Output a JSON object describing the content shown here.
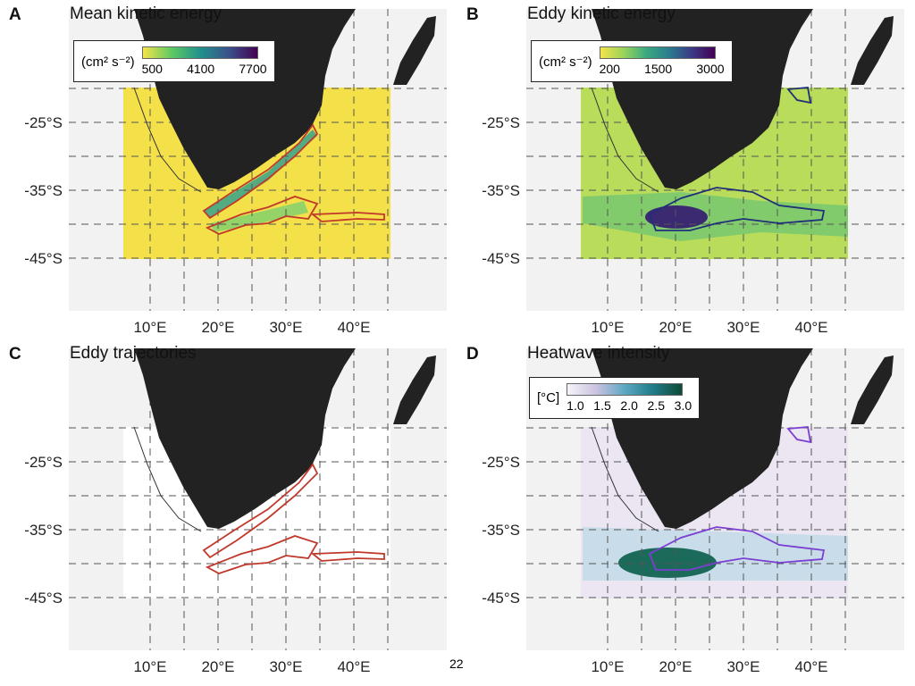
{
  "axes": {
    "lat_ticks": [
      "-25°S",
      "-35°S",
      "-45°S"
    ],
    "lon_ticks": [
      "10°E",
      "20°E",
      "30°E",
      "40°E"
    ]
  },
  "panels": [
    {
      "letter": "A",
      "title": "Mean kinetic energy",
      "legend": {
        "unit": "(cm² s⁻²)",
        "ticks": [
          "500",
          "4100",
          "7700"
        ],
        "colors": [
          "#f5e44a",
          "#5ec962",
          "#21918c",
          "#3b528b",
          "#440154"
        ]
      },
      "fill": "#f4e14a",
      "contour_color": "#c0392b"
    },
    {
      "letter": "B",
      "title": "Eddy kinetic energy",
      "legend": {
        "unit": "(cm² s⁻²)",
        "ticks": [
          "200",
          "1500",
          "3000"
        ],
        "colors": [
          "#f5e44a",
          "#9bd45a",
          "#3aaa80",
          "#2b7c8e",
          "#3b3a86",
          "#440154"
        ]
      },
      "fill": "#b9dd5a",
      "contour_color": "#1f2f78"
    },
    {
      "letter": "C",
      "title": "Eddy trajectories",
      "fill": "#ffffff",
      "contour_color": "#c0392b"
    },
    {
      "letter": "D",
      "title": "Heatwave intensity",
      "legend": {
        "unit": "[°C]",
        "ticks": [
          "1.0",
          "1.5",
          "2.0",
          "2.5",
          "3.0"
        ],
        "colors": [
          "#f7f3fa",
          "#cbc3e0",
          "#5da7c3",
          "#1f7b88",
          "#0d4a36"
        ]
      },
      "fill": "#ebe6f2",
      "contour_color": "#7b3fd1"
    }
  ],
  "page_number": "22"
}
